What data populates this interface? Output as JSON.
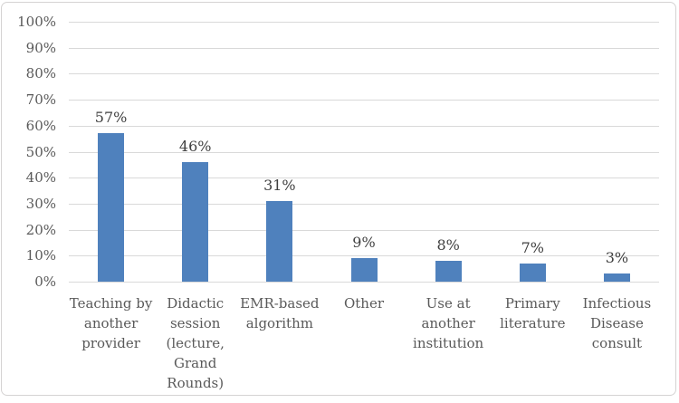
{
  "chart_data": {
    "type": "bar",
    "title": "",
    "categories": [
      "Teaching by another provider",
      "Didactic session (lecture, Grand Rounds)",
      "EMR-based algorithm",
      "Other",
      "Use at another institution",
      "Primary literature",
      "Infectious Disease consult"
    ],
    "values": [
      57,
      46,
      31,
      9,
      8,
      7,
      3
    ],
    "value_labels": [
      "57%",
      "46%",
      "31%",
      "9%",
      "8%",
      "7%",
      "3%"
    ],
    "y_ticks": [
      "0%",
      "10%",
      "20%",
      "30%",
      "40%",
      "50%",
      "60%",
      "70%",
      "80%",
      "90%",
      "100%"
    ],
    "ylim": [
      0,
      100
    ],
    "y_tick_step": 10,
    "grid": true,
    "legend": "none",
    "xlabel": "",
    "ylabel": "",
    "colors": {
      "bar": "#4F81BD",
      "gridline": "#D9D9D9",
      "axis_label": "#595959",
      "data_label": "#3F3F3F",
      "category_label": "#595959",
      "frame_border": "#D5D3D3",
      "background": "#FFFFFF"
    }
  }
}
